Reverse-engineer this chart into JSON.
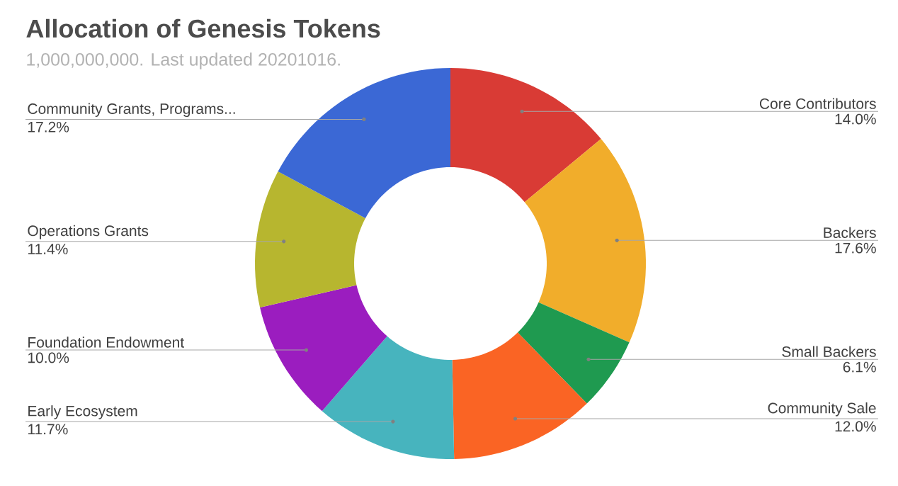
{
  "chart_data": {
    "type": "donut",
    "title": "Allocation of Genesis Tokens",
    "subtitle": "1,000,000,000. Last updated 20201016.",
    "categories": [
      "Core Contributors",
      "Backers",
      "Small Backers",
      "Community Sale",
      "Early Ecosystem",
      "Foundation Endowment",
      "Operations Grants",
      "Community Grants, Programs..."
    ],
    "values": [
      14.0,
      17.6,
      6.1,
      12.0,
      11.7,
      10.0,
      11.4,
      17.2
    ],
    "colors": [
      "#d93b35",
      "#f1ad2b",
      "#1f9a50",
      "#fa6424",
      "#47b4be",
      "#9b1dbf",
      "#b7b62f",
      "#3b68d5"
    ],
    "value_labels": [
      "14.0%",
      "17.6%",
      "6.1%",
      "12.0%",
      "11.7%",
      "10.0%",
      "11.4%",
      "17.2%"
    ]
  }
}
